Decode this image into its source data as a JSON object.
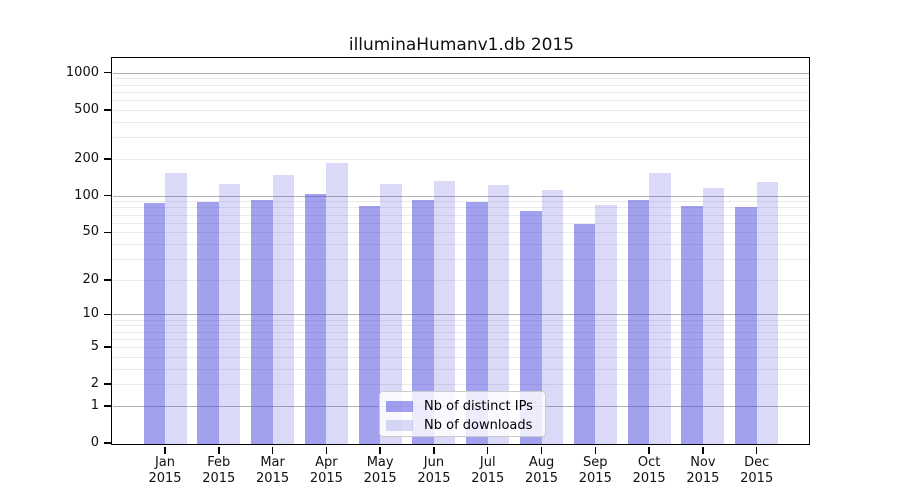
{
  "title": "illuminaHumanv1.db 2015",
  "chart_data": {
    "type": "bar",
    "title": "illuminaHumanv1.db 2015",
    "categories": [
      "Jan 2015",
      "Feb 2015",
      "Mar 2015",
      "Apr 2015",
      "May 2015",
      "Jun 2015",
      "Jul 2015",
      "Aug 2015",
      "Sep 2015",
      "Oct 2015",
      "Nov 2015",
      "Dec 2015"
    ],
    "category_line1": [
      "Jan",
      "Feb",
      "Mar",
      "Apr",
      "May",
      "Jun",
      "Jul",
      "Aug",
      "Sep",
      "Oct",
      "Nov",
      "Dec"
    ],
    "category_line2": "2015",
    "series": [
      {
        "name": "Nb of distinct IPs",
        "color": "rgba(68,68,221,0.5)",
        "values": [
          87,
          89,
          93,
          103,
          82,
          92,
          88,
          75,
          59,
          92,
          83,
          81
        ]
      },
      {
        "name": "Nb of downloads",
        "color": "rgba(68,68,221,0.2)",
        "values": [
          153,
          125,
          147,
          185,
          125,
          133,
          123,
          112,
          84,
          153,
          115,
          130
        ]
      }
    ],
    "xlabel": "",
    "ylabel": "",
    "yscale": "log10(value+1)",
    "ytick_labels": [
      "1000",
      "500",
      "200",
      "100",
      "50",
      "20",
      "10",
      "5",
      "2",
      "1",
      "0"
    ],
    "ytick_values": [
      1000,
      500,
      200,
      100,
      50,
      20,
      10,
      5,
      2,
      1,
      0
    ],
    "ylim": [
      0,
      1280
    ],
    "grid": {
      "major": [
        1,
        10,
        100,
        1000
      ],
      "minor": [
        2,
        3,
        4,
        5,
        6,
        7,
        8,
        9,
        20,
        30,
        40,
        50,
        60,
        70,
        80,
        90,
        200,
        300,
        400,
        500,
        600,
        700,
        800,
        900
      ]
    },
    "legend_position": "bottom-center"
  },
  "colors": {
    "background": "#ffffff",
    "frame": "#000000",
    "grid_major": "#b0b0b0",
    "grid_minor": "#ebebeb",
    "text": "#111111",
    "legend_bg": "rgba(255,255,255,0.8)",
    "legend_border": "#cccccc",
    "bar_ips": "rgba(68,68,221,0.5)",
    "bar_downloads": "rgba(68,68,221,0.2)"
  }
}
